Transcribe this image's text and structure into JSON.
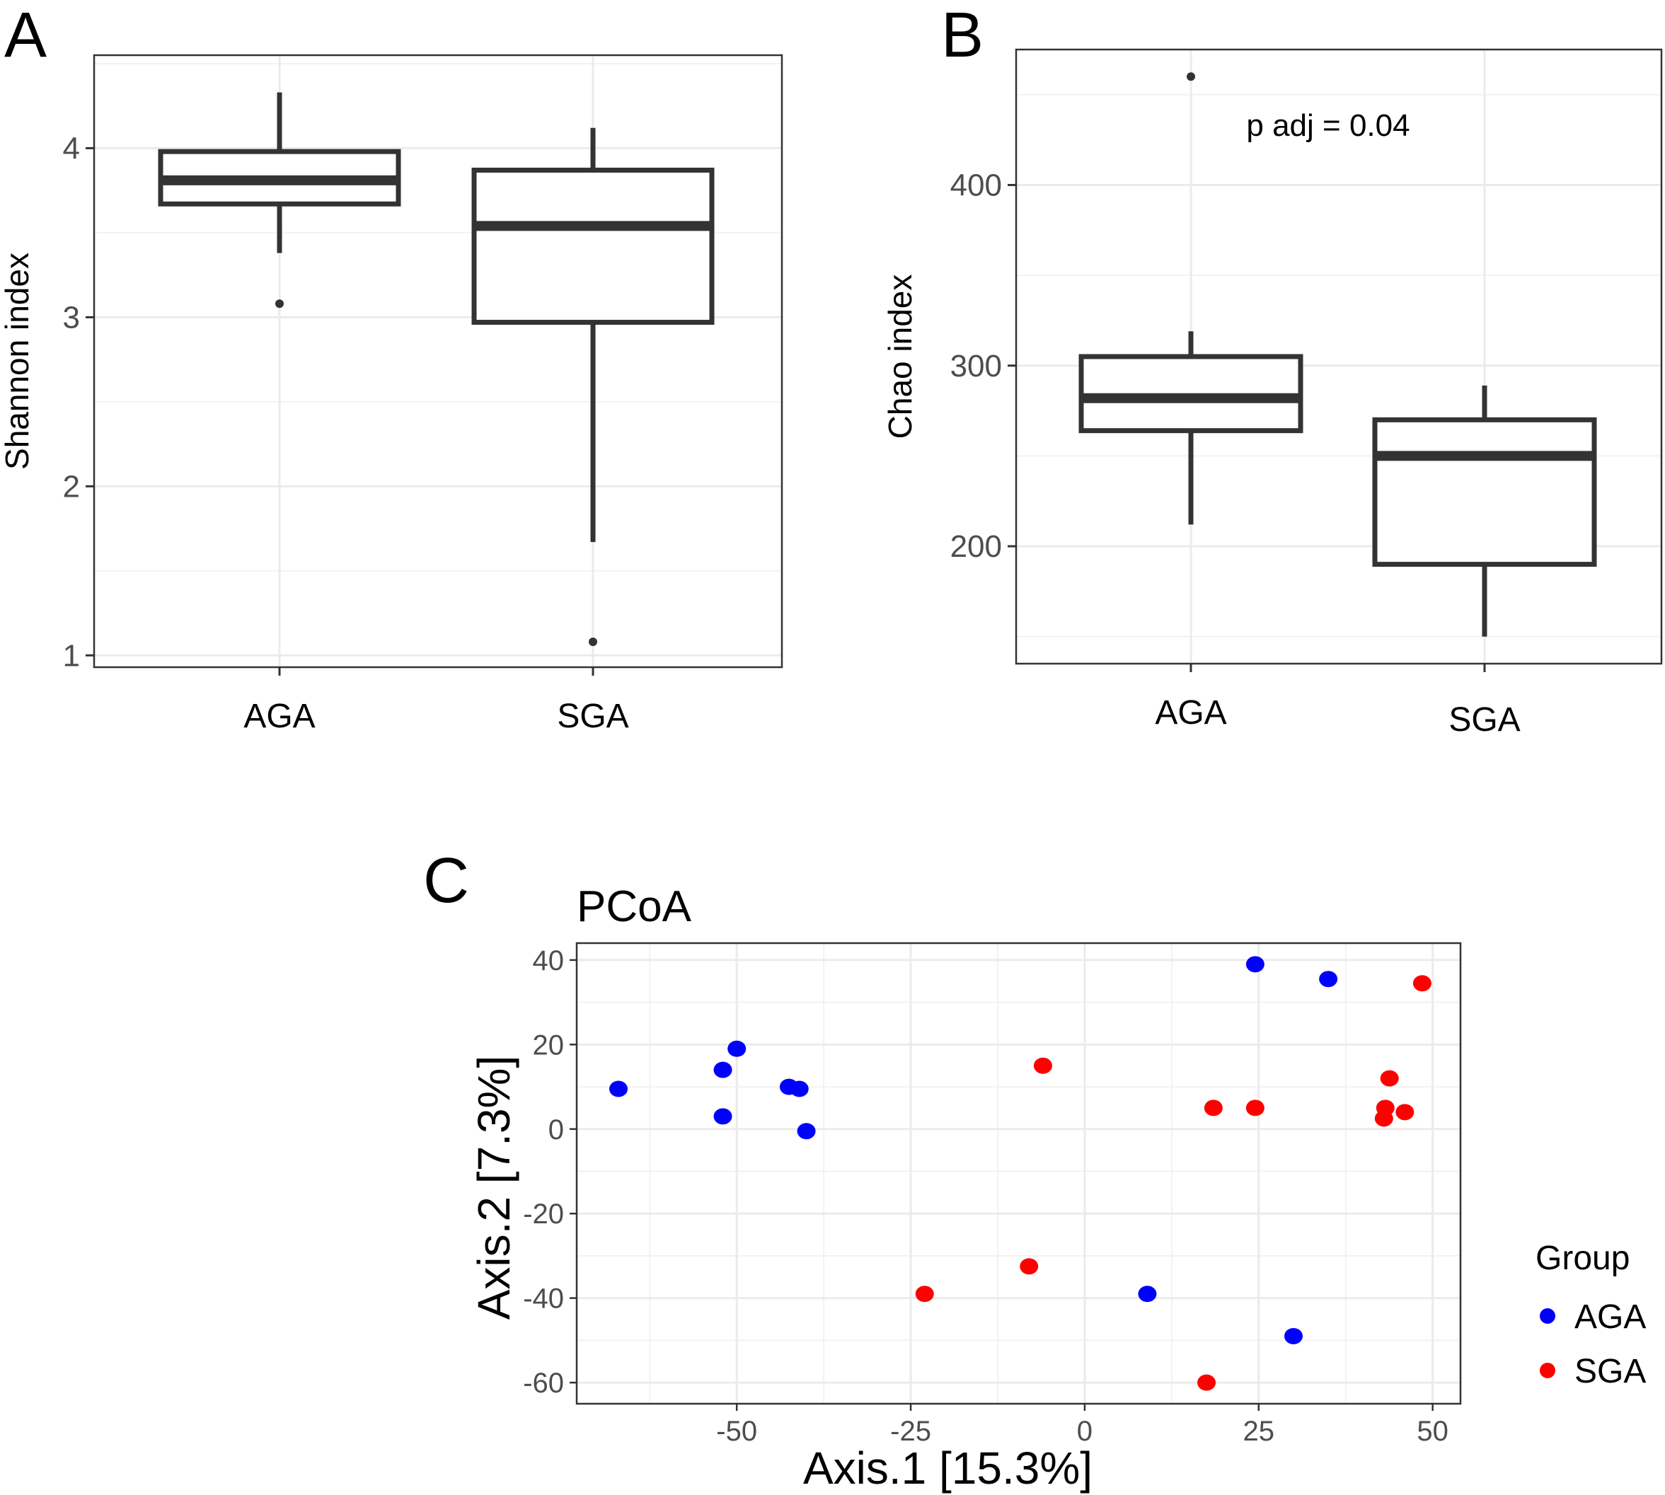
{
  "panels": {
    "a": "A",
    "b": "B",
    "c": "C"
  },
  "chart_data": [
    {
      "type": "box",
      "panel": "A",
      "ylabel": "Shannon index",
      "ylim": [
        0.93,
        4.55
      ],
      "yticks": [
        1,
        2,
        3,
        4
      ],
      "categories": [
        "AGA",
        "SGA"
      ],
      "boxes": [
        {
          "name": "AGA",
          "whisker_low": 3.38,
          "q1": 3.67,
          "median": 3.81,
          "q3": 3.98,
          "whisker_high": 4.33,
          "outliers": [
            3.08
          ]
        },
        {
          "name": "SGA",
          "whisker_low": 1.67,
          "q1": 2.97,
          "median": 3.54,
          "q3": 3.87,
          "whisker_high": 4.12,
          "outliers": [
            1.08
          ]
        }
      ]
    },
    {
      "type": "box",
      "panel": "B",
      "ylabel": "Chao index",
      "ylim": [
        135,
        475
      ],
      "yticks": [
        200,
        300,
        400
      ],
      "categories": [
        "AGA",
        "SGA"
      ],
      "annotation": "p adj = 0.04",
      "boxes": [
        {
          "name": "AGA",
          "whisker_low": 212,
          "q1": 264,
          "median": 282,
          "q3": 305,
          "whisker_high": 319,
          "outliers": [
            460
          ]
        },
        {
          "name": "SGA",
          "whisker_low": 150,
          "q1": 190,
          "median": 250,
          "q3": 270,
          "whisker_high": 289,
          "outliers": []
        }
      ]
    },
    {
      "type": "scatter",
      "panel": "C",
      "title": "PCoA",
      "xlabel": "Axis.1   [15.3%]",
      "ylabel": "Axis.2   [7.3%]",
      "xlim": [
        -73,
        54
      ],
      "ylim": [
        -65,
        44
      ],
      "xticks": [
        -50,
        -25,
        0,
        25,
        50
      ],
      "yticks": [
        40,
        20,
        0,
        -20,
        -40,
        -60
      ],
      "legend_title": "Group",
      "legend_position": "right",
      "series": [
        {
          "name": "AGA",
          "color": "#0000ff",
          "points": [
            [
              -67,
              9.5
            ],
            [
              -52,
              14
            ],
            [
              -52,
              3
            ],
            [
              -50,
              19
            ],
            [
              -42.5,
              10
            ],
            [
              -41,
              9.5
            ],
            [
              -40,
              -0.5
            ],
            [
              9,
              -39
            ],
            [
              24.5,
              39
            ],
            [
              30,
              -49
            ],
            [
              35,
              35.5
            ]
          ]
        },
        {
          "name": "SGA",
          "color": "#ff0000",
          "points": [
            [
              -23,
              -39
            ],
            [
              -8,
              -32.5
            ],
            [
              -6,
              15
            ],
            [
              17.5,
              -60
            ],
            [
              18.5,
              5
            ],
            [
              24.5,
              5
            ],
            [
              43,
              2.5
            ],
            [
              43.2,
              5
            ],
            [
              43.8,
              12
            ],
            [
              46,
              4
            ],
            [
              48.5,
              34.5
            ]
          ]
        }
      ]
    }
  ]
}
